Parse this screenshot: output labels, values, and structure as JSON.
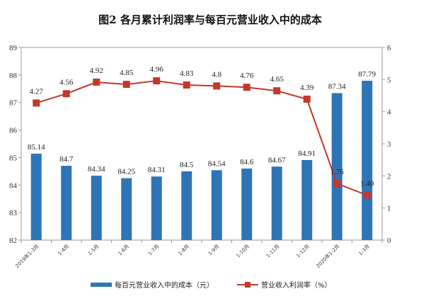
{
  "chart_data": {
    "type": "bar+line",
    "title": "图2 各月累计利润率与每百元营业收入中的成本",
    "categories": [
      "2019年1-3月",
      "1-4月",
      "1-5月",
      "1-6月",
      "1-7月",
      "1-8月",
      "1-9月",
      "1-10月",
      "1-11月",
      "1-12月",
      "2020年1-2月",
      "1-3月"
    ],
    "series": [
      {
        "name": "每百元营业收入中的成本（元）",
        "type": "bar",
        "axis": "left",
        "color": "#2E75B6",
        "values": [
          85.14,
          84.7,
          84.34,
          84.25,
          84.31,
          84.5,
          84.54,
          84.6,
          84.67,
          84.91,
          87.34,
          87.79
        ],
        "labels": [
          "85.14",
          "84.7",
          "84.34",
          "84.25",
          "84.31",
          "84.5",
          "84.54",
          "84.6",
          "84.67",
          "84.91",
          "87.34",
          "87.79"
        ]
      },
      {
        "name": "营业收入利润率（%）",
        "type": "line",
        "axis": "right",
        "color": "#C0392B",
        "values": [
          4.27,
          4.56,
          4.92,
          4.85,
          4.96,
          4.83,
          4.8,
          4.76,
          4.65,
          4.39,
          1.76,
          1.4
        ],
        "labels": [
          "4.27",
          "4.56",
          "4.92",
          "4.85",
          "4.96",
          "4.83",
          "4.8",
          "4.76",
          "4.65",
          "4.39",
          "1.76",
          "1.40"
        ]
      }
    ],
    "y_left": {
      "min": 82,
      "max": 89,
      "ticks": [
        "82",
        "83",
        "84",
        "85",
        "86",
        "87",
        "88",
        "89"
      ]
    },
    "y_right": {
      "min": 0,
      "max": 6,
      "ticks": [
        "0",
        "1",
        "2",
        "3",
        "4",
        "5",
        "6"
      ]
    },
    "legend_position": "bottom",
    "grid": false
  }
}
